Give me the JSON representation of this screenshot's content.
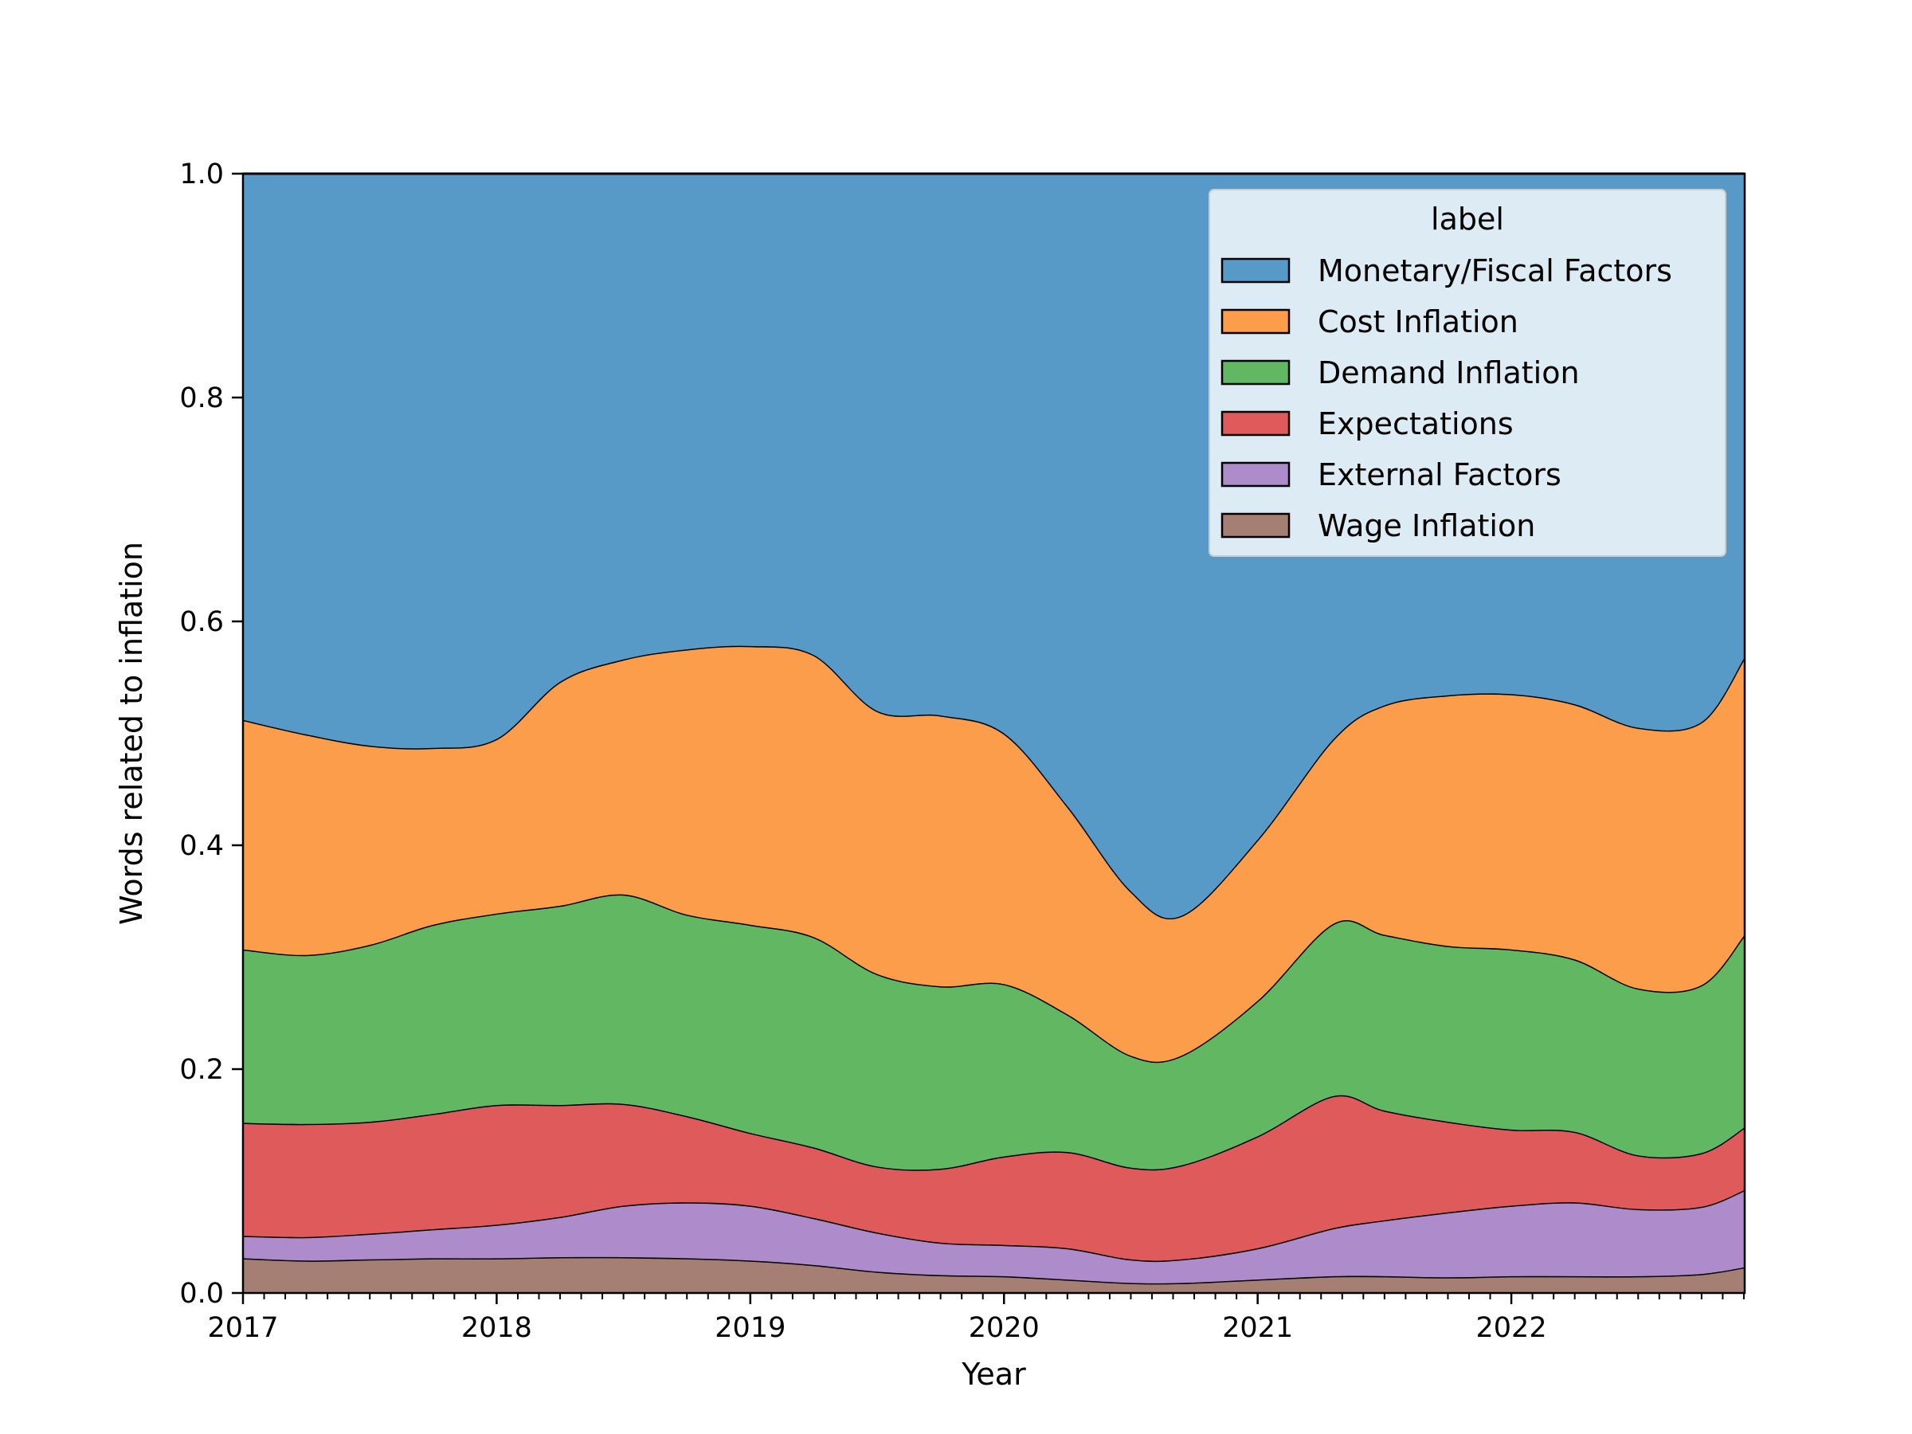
{
  "chart_data": {
    "type": "area",
    "stacked": true,
    "normalized": true,
    "xlabel": "Year",
    "ylabel": "Words related to inflation",
    "xlim": [
      2017.0,
      2022.92
    ],
    "ylim": [
      0.0,
      1.0
    ],
    "x_ticks": [
      "2017",
      "2018",
      "2019",
      "2020",
      "2021",
      "2022"
    ],
    "y_ticks": [
      "0.0",
      "0.2",
      "0.4",
      "0.6",
      "0.8",
      "1.0"
    ],
    "grid": false,
    "legend": {
      "title": "label",
      "position": "top-right"
    },
    "x": [
      2017.0,
      2017.25,
      2017.5,
      2017.75,
      2018.0,
      2018.25,
      2018.5,
      2018.75,
      2019.0,
      2019.25,
      2019.5,
      2019.75,
      2020.0,
      2020.25,
      2020.5,
      2020.7,
      2021.0,
      2021.3,
      2021.5,
      2021.75,
      2022.0,
      2022.25,
      2022.5,
      2022.75,
      2022.92
    ],
    "series": [
      {
        "name": "Wage Inflation",
        "color": "#a57e74",
        "values": [
          0.031,
          0.029,
          0.03,
          0.031,
          0.031,
          0.032,
          0.032,
          0.031,
          0.029,
          0.025,
          0.019,
          0.016,
          0.015,
          0.012,
          0.009,
          0.009,
          0.012,
          0.015,
          0.015,
          0.014,
          0.015,
          0.015,
          0.015,
          0.017,
          0.023
        ]
      },
      {
        "name": "External Factors",
        "color": "#ae8bcb",
        "values": [
          0.02,
          0.021,
          0.023,
          0.026,
          0.03,
          0.036,
          0.046,
          0.05,
          0.049,
          0.042,
          0.035,
          0.029,
          0.028,
          0.028,
          0.021,
          0.021,
          0.028,
          0.043,
          0.05,
          0.058,
          0.063,
          0.066,
          0.06,
          0.06,
          0.069
        ]
      },
      {
        "name": "Expectations",
        "color": "#df5b5b",
        "values": [
          0.101,
          0.101,
          0.1,
          0.103,
          0.107,
          0.1,
          0.091,
          0.077,
          0.065,
          0.063,
          0.059,
          0.066,
          0.079,
          0.086,
          0.082,
          0.084,
          0.1,
          0.118,
          0.098,
          0.081,
          0.068,
          0.063,
          0.048,
          0.048,
          0.056
        ]
      },
      {
        "name": "Demand Inflation",
        "color": "#62b862",
        "values": [
          0.155,
          0.151,
          0.158,
          0.169,
          0.171,
          0.178,
          0.187,
          0.18,
          0.186,
          0.188,
          0.172,
          0.163,
          0.154,
          0.123,
          0.1,
          0.098,
          0.121,
          0.154,
          0.157,
          0.157,
          0.161,
          0.154,
          0.149,
          0.15,
          0.172
        ]
      },
      {
        "name": "Cost Inflation",
        "color": "#fc9d4b",
        "values": [
          0.205,
          0.197,
          0.178,
          0.158,
          0.156,
          0.2,
          0.21,
          0.237,
          0.249,
          0.252,
          0.235,
          0.242,
          0.224,
          0.186,
          0.147,
          0.125,
          0.144,
          0.165,
          0.205,
          0.224,
          0.228,
          0.228,
          0.233,
          0.235,
          0.248
        ]
      },
      {
        "name": "Monetary/Fiscal Factors",
        "color": "#579ac7",
        "values": [
          0.488,
          0.501,
          0.511,
          0.513,
          0.505,
          0.454,
          0.434,
          0.425,
          0.422,
          0.43,
          0.48,
          0.484,
          0.5,
          0.565,
          0.641,
          0.663,
          0.595,
          0.505,
          0.475,
          0.466,
          0.465,
          0.474,
          0.495,
          0.49,
          0.432
        ]
      }
    ]
  }
}
